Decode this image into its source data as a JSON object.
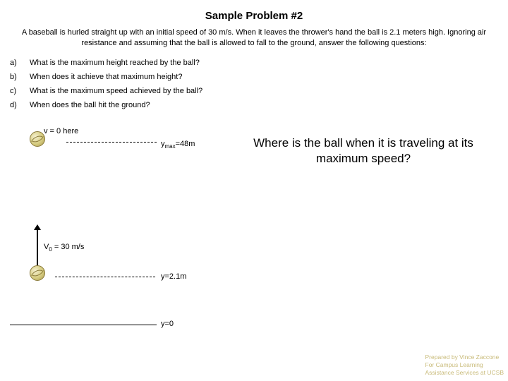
{
  "title": "Sample Problem #2",
  "problem_text": "A baseball is hurled straight up with an initial speed of 30 m/s. When it leaves the thrower's hand the ball is 2.1 meters high. Ignoring air resistance and assuming that the ball is allowed to fall to the ground, answer the following questions:",
  "questions": [
    {
      "label": "a)",
      "text": "What is the maximum height reached by the ball?"
    },
    {
      "label": "b)",
      "text": "When does it achieve that maximum height?"
    },
    {
      "label": "c)",
      "text": "What is the maximum speed achieved by the ball?"
    },
    {
      "label": "d)",
      "text": "When does the ball hit the ground?"
    }
  ],
  "diagram": {
    "v_top_label": "v = 0 here",
    "ymax_label_prefix": "y",
    "ymax_label_sub": "max",
    "ymax_label_suffix": "=48m",
    "v0_label_prefix": "V",
    "v0_label_sub": "0",
    "v0_label_suffix": " = 30 m/s",
    "y_mid_label": "y=2.1m",
    "y_ground_label": "y=0"
  },
  "main_question": "Where is the ball when it is traveling at its maximum speed?",
  "footer": {
    "line1": "Prepared by Vince Zaccone",
    "line2": "For Campus Learning",
    "line3": "Assistance Services at UCSB"
  }
}
